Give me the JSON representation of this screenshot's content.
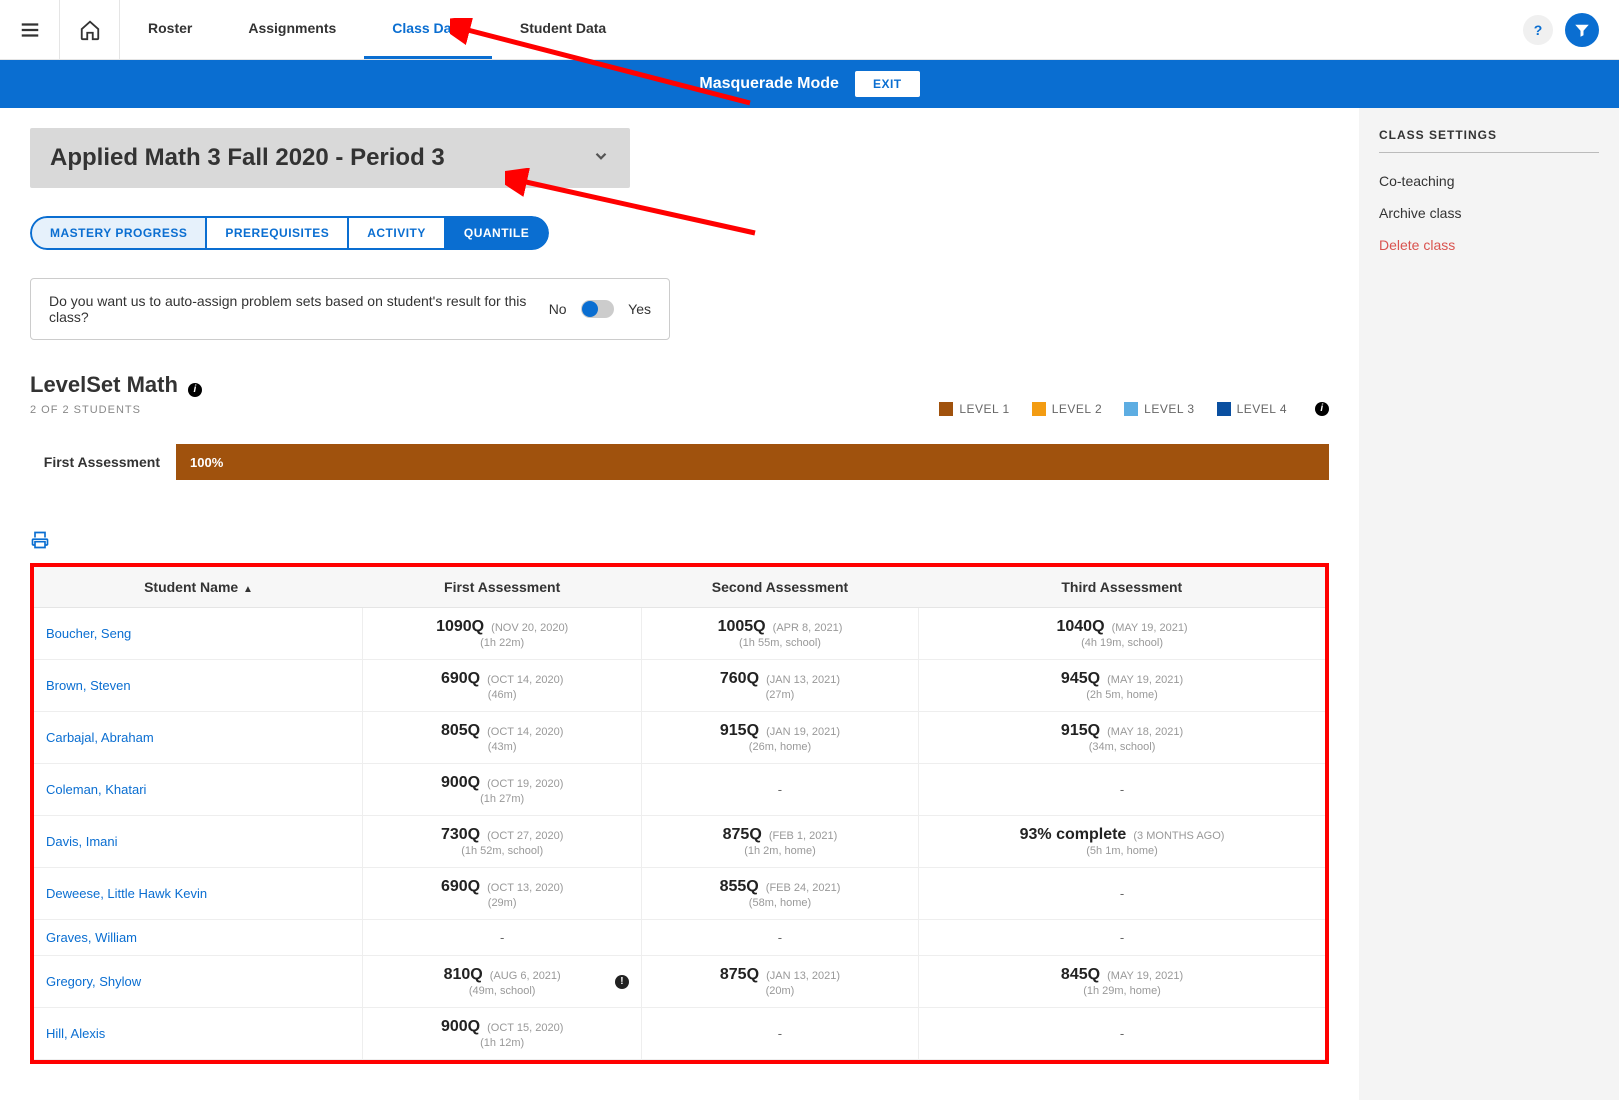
{
  "topnav": {
    "tabs": [
      "Roster",
      "Assignments",
      "Class Data",
      "Student Data"
    ],
    "active_index": 2
  },
  "masquerade": {
    "label": "Masquerade Mode",
    "exit": "EXIT"
  },
  "class": {
    "name": "Applied Math 3 Fall 2020 - Period 3"
  },
  "segments": {
    "items": [
      "MASTERY PROGRESS",
      "PREREQUISITES",
      "ACTIVITY",
      "QUANTILE"
    ],
    "active_index": 3
  },
  "auto_assign": {
    "prompt": "Do you want us to auto-assign problem sets based on student's result for this class?",
    "no": "No",
    "yes": "Yes"
  },
  "section": {
    "title": "LevelSet Math",
    "count": "2 OF 2 STUDENTS"
  },
  "legend": {
    "items": [
      {
        "label": "LEVEL 1",
        "color": "#a0520d"
      },
      {
        "label": "LEVEL 2",
        "color": "#f39c12"
      },
      {
        "label": "LEVEL 3",
        "color": "#5dade2"
      },
      {
        "label": "LEVEL 4",
        "color": "#0a4fa0"
      }
    ]
  },
  "bar": {
    "label": "First Assessment",
    "pct": "100%",
    "fill_color": "#a0520d"
  },
  "table": {
    "columns": [
      "Student Name",
      "First Assessment",
      "Second Assessment",
      "Third Assessment"
    ],
    "rows": [
      {
        "name": "Boucher, Seng",
        "a1": {
          "score": "1090Q",
          "date": "(NOV 20, 2020)",
          "sub": "(1h 22m)"
        },
        "a2": {
          "score": "1005Q",
          "date": "(APR 8, 2021)",
          "sub": "(1h 55m, school)"
        },
        "a3": {
          "score": "1040Q",
          "date": "(MAY 19, 2021)",
          "sub": "(4h 19m, school)"
        }
      },
      {
        "name": "Brown, Steven",
        "a1": {
          "score": "690Q",
          "date": "(OCT 14, 2020)",
          "sub": "(46m)"
        },
        "a2": {
          "score": "760Q",
          "date": "(JAN 13, 2021)",
          "sub": "(27m)"
        },
        "a3": {
          "score": "945Q",
          "date": "(MAY 19, 2021)",
          "sub": "(2h 5m, home)"
        }
      },
      {
        "name": "Carbajal, Abraham",
        "a1": {
          "score": "805Q",
          "date": "(OCT 14, 2020)",
          "sub": "(43m)"
        },
        "a2": {
          "score": "915Q",
          "date": "(JAN 19, 2021)",
          "sub": "(26m, home)"
        },
        "a3": {
          "score": "915Q",
          "date": "(MAY 18, 2021)",
          "sub": "(34m, school)"
        }
      },
      {
        "name": "Coleman, Khatari",
        "a1": {
          "score": "900Q",
          "date": "(OCT 19, 2020)",
          "sub": "(1h 27m)"
        },
        "a2": null,
        "a3": null
      },
      {
        "name": "Davis, Imani",
        "a1": {
          "score": "730Q",
          "date": "(OCT 27, 2020)",
          "sub": "(1h 52m, school)"
        },
        "a2": {
          "score": "875Q",
          "date": "(FEB 1, 2021)",
          "sub": "(1h 2m, home)"
        },
        "a3": {
          "score": "93% complete",
          "date": "(3 MONTHS AGO)",
          "sub": "(5h 1m, home)"
        }
      },
      {
        "name": "Deweese, Little Hawk Kevin",
        "a1": {
          "score": "690Q",
          "date": "(OCT 13, 2020)",
          "sub": "(29m)"
        },
        "a2": {
          "score": "855Q",
          "date": "(FEB 24, 2021)",
          "sub": "(58m, home)"
        },
        "a3": null
      },
      {
        "name": "Graves, William",
        "a1": null,
        "a2": null,
        "a3": null
      },
      {
        "name": "Gregory, Shylow",
        "alert": true,
        "a1": {
          "score": "810Q",
          "date": "(AUG 6, 2021)",
          "sub": "(49m, school)"
        },
        "a2": {
          "score": "875Q",
          "date": "(JAN 13, 2021)",
          "sub": "(20m)"
        },
        "a3": {
          "score": "845Q",
          "date": "(MAY 19, 2021)",
          "sub": "(1h 29m, home)"
        }
      },
      {
        "name": "Hill, Alexis",
        "a1": {
          "score": "900Q",
          "date": "(OCT 15, 2020)",
          "sub": "(1h 12m)"
        },
        "a2": null,
        "a3": null
      }
    ]
  },
  "sidebar": {
    "title": "CLASS SETTINGS",
    "items": [
      {
        "label": "Co-teaching",
        "danger": false
      },
      {
        "label": "Archive class",
        "danger": false
      },
      {
        "label": "Delete class",
        "danger": true
      }
    ]
  },
  "colors": {
    "primary": "#0a6ed1",
    "arrow": "#ff0000"
  }
}
